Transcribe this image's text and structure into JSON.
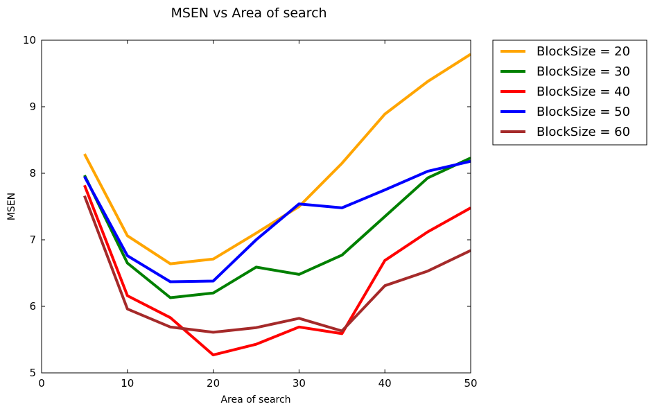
{
  "chart_data": {
    "type": "line",
    "title": "MSEN vs Area of search",
    "xlabel": "Area of search",
    "ylabel": "MSEN",
    "xlim": [
      0,
      50
    ],
    "ylim": [
      5,
      10
    ],
    "xticks": [
      0,
      10,
      20,
      30,
      40,
      50
    ],
    "yticks": [
      5,
      6,
      7,
      8,
      9,
      10
    ],
    "grid": false,
    "legend_position": "outside-top-right",
    "x": [
      5,
      10,
      15,
      20,
      25,
      30,
      35,
      40,
      45,
      50
    ],
    "series": [
      {
        "name": "BlockSize = 20",
        "color": "#ffa500",
        "values": [
          8.29,
          7.06,
          6.64,
          6.71,
          7.1,
          7.5,
          8.15,
          8.89,
          9.38,
          9.79
        ]
      },
      {
        "name": "BlockSize = 30",
        "color": "#008000",
        "values": [
          7.97,
          6.65,
          6.13,
          6.2,
          6.59,
          6.48,
          6.77,
          7.35,
          7.93,
          8.23
        ]
      },
      {
        "name": "BlockSize = 40",
        "color": "#ff0000",
        "values": [
          7.82,
          6.16,
          5.83,
          5.27,
          5.43,
          5.69,
          5.59,
          6.69,
          7.12,
          7.48
        ]
      },
      {
        "name": "BlockSize = 50",
        "color": "#0000ff",
        "values": [
          7.95,
          6.76,
          6.37,
          6.38,
          7.0,
          7.54,
          7.48,
          7.75,
          8.03,
          8.18
        ]
      },
      {
        "name": "BlockSize = 60",
        "color": "#a52a2a",
        "values": [
          7.66,
          5.96,
          5.69,
          5.61,
          5.68,
          5.82,
          5.63,
          6.31,
          6.53,
          6.84
        ]
      }
    ]
  }
}
